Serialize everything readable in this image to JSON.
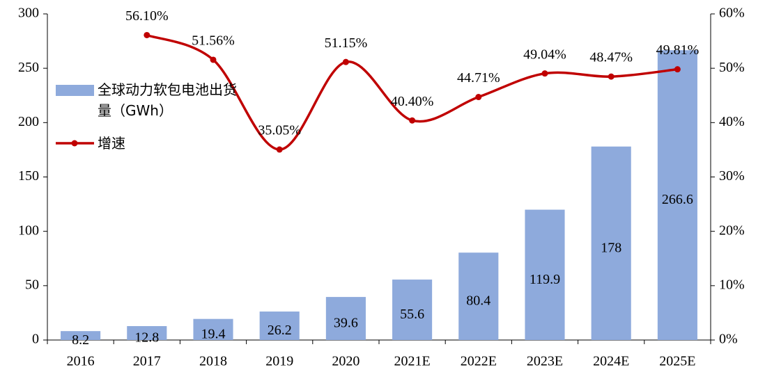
{
  "chart_data": {
    "type": "bar_line",
    "categories": [
      "2016",
      "2017",
      "2018",
      "2019",
      "2020",
      "2021E",
      "2022E",
      "2023E",
      "2024E",
      "2025E"
    ],
    "series": [
      {
        "name": "全球动力软包电池出货量（GWh）",
        "type": "bar",
        "color": "#8eaadc",
        "values": [
          8.2,
          12.8,
          19.4,
          26.2,
          39.6,
          55.6,
          80.4,
          119.9,
          178,
          266.6
        ]
      },
      {
        "name": "增速",
        "type": "line",
        "axis": "y2",
        "color": "#c00000",
        "values": [
          null,
          56.1,
          51.56,
          35.05,
          51.15,
          40.4,
          44.71,
          49.04,
          48.47,
          49.81
        ],
        "value_labels": [
          null,
          "56.10%",
          "51.56%",
          "35.05%",
          "51.15%",
          "40.40%",
          "44.71%",
          "49.04%",
          "48.47%",
          "49.81%"
        ]
      }
    ],
    "ylim": [
      0,
      300
    ],
    "yticks": [
      0,
      50,
      100,
      150,
      200,
      250,
      300
    ],
    "y2lim": [
      0,
      60
    ],
    "y2ticks": [
      {
        "value": 0,
        "label": "0%"
      },
      {
        "value": 10,
        "label": "10%"
      },
      {
        "value": 20,
        "label": "20%"
      },
      {
        "value": 30,
        "label": "30%"
      },
      {
        "value": 40,
        "label": "40%"
      },
      {
        "value": 50,
        "label": "50%"
      },
      {
        "value": 60,
        "label": "60%"
      }
    ],
    "legend": "upper left"
  }
}
